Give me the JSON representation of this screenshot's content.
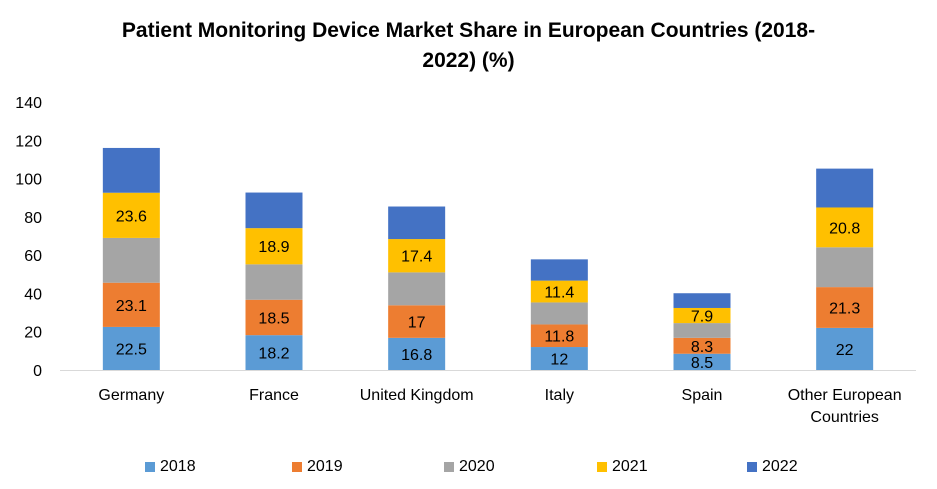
{
  "chart_data": {
    "type": "bar",
    "stacked": true,
    "title_line1": "Patient Monitoring Device Market Share in European Countries (2018-",
    "title_line2": "2022) (%)",
    "xlabel": "",
    "ylabel": "",
    "ylim": [
      0,
      140
    ],
    "yticks": [
      "0",
      "20",
      "40",
      "60",
      "80",
      "100",
      "120",
      "140"
    ],
    "ytick_values": [
      0,
      20,
      40,
      60,
      80,
      100,
      120,
      140
    ],
    "grid": false,
    "legend_position": "bottom",
    "categories": [
      [
        "Germany"
      ],
      [
        "France"
      ],
      [
        "United Kingdom"
      ],
      [
        "Italy"
      ],
      [
        "Spain"
      ],
      [
        "Other European",
        "Countries"
      ]
    ],
    "series": [
      {
        "name": "2018",
        "color": "#5B9BD5",
        "values": [
          22.5,
          18.2,
          16.8,
          12,
          8.5,
          22
        ],
        "labels": [
          "22.5",
          "18.2",
          "16.8",
          "12",
          "8.5",
          "22"
        ]
      },
      {
        "name": "2019",
        "color": "#ED7D31",
        "values": [
          23.1,
          18.5,
          17,
          11.8,
          8.3,
          21.3
        ],
        "labels": [
          "23.1",
          "18.5",
          "17",
          "11.8",
          "8.3",
          "21.3"
        ]
      },
      {
        "name": "2020",
        "color": "#A5A5A5",
        "values": [
          23.4,
          18.5,
          17.2,
          11.5,
          7.7,
          20.8
        ],
        "labels": [
          "",
          "",
          "",
          "",
          "",
          ""
        ]
      },
      {
        "name": "2021",
        "color": "#FFC000",
        "values": [
          23.6,
          18.9,
          17.4,
          11.4,
          7.9,
          20.8
        ],
        "labels": [
          "23.6",
          "18.9",
          "17.4",
          "11.4",
          "7.9",
          "20.8"
        ]
      },
      {
        "name": "2022",
        "color": "#4472C4",
        "values": [
          23.4,
          18.6,
          17,
          11.1,
          7.7,
          20.3
        ],
        "labels": [
          "",
          "",
          "",
          "",
          "",
          ""
        ]
      }
    ]
  }
}
